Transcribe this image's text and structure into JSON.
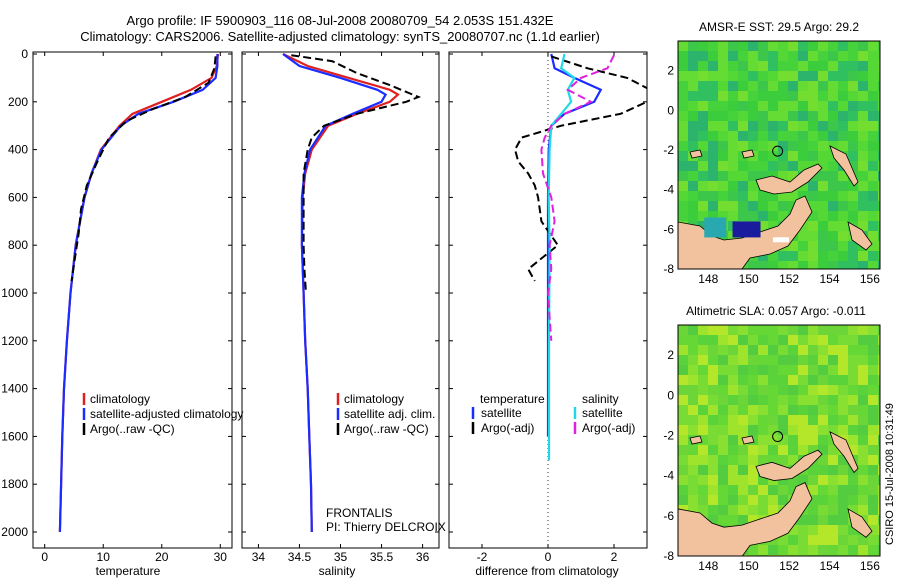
{
  "header": {
    "title_line1": "Argo profile: IF 5900903_116 08-Jul-2008 20080709_54 2.053S 151.432E",
    "title_line2": "Climatology: CARS2006. Satellite-adjusted climatology: synTS_20080707.nc (1.1d earlier)"
  },
  "side_label": "CSIRO 15-Jul-2008 10:31:49",
  "colors": {
    "climatology": "#e02020",
    "satellite": "#1a2cff",
    "argo": "#000000",
    "sat_salinity": "#22d8e8",
    "argo_salinity": "#e020e0"
  },
  "panels": {
    "temperature": {
      "xlabel": "temperature",
      "legend": [
        "climatology",
        "satellite-adjusted climatology",
        "Argo(..raw -QC)"
      ]
    },
    "salinity": {
      "xlabel": "salinity",
      "legend": [
        "climatology",
        "satellite adj. clim.",
        "Argo(..raw -QC)"
      ],
      "note_line1": "FRONTALIS",
      "note_line2": "PI: Thierry DELCROIX"
    },
    "difference": {
      "xlabel": "difference from climatology",
      "legend_heads": [
        "temperature",
        "salinity"
      ],
      "legend_temp": [
        "satellite",
        "Argo(-adj)"
      ],
      "legend_sal": [
        "satellite",
        "Argo(-adj)"
      ]
    }
  },
  "maps": {
    "sst_title": "AMSR-E SST: 29.5 Argo: 29.2",
    "sla_title": "Altimetric SLA: 0.057 Argo: -0.011"
  },
  "chart_data": [
    {
      "type": "line",
      "id": "temperature",
      "xlabel": "temperature",
      "ylim": [
        2000,
        0
      ],
      "xlim": [
        -2,
        32
      ],
      "xticks": [
        0,
        10,
        20,
        30
      ],
      "yticks": [
        0,
        200,
        400,
        600,
        800,
        1000,
        1200,
        1400,
        1600,
        1800,
        2000
      ],
      "series": [
        {
          "name": "climatology",
          "color": "#e02020",
          "dash": false,
          "depth": [
            0,
            50,
            100,
            150,
            200,
            250,
            300,
            400,
            500,
            600,
            800,
            1000,
            1200,
            1400,
            1600,
            1800,
            2000
          ],
          "values": [
            29.6,
            29.4,
            28.5,
            25,
            20,
            15,
            12.8,
            9.6,
            8,
            6.8,
            5.3,
            4.4,
            3.8,
            3.3,
            3,
            2.8,
            2.6
          ]
        },
        {
          "name": "satellite-adjusted climatology",
          "color": "#1a2cff",
          "dash": false,
          "depth": [
            0,
            50,
            100,
            150,
            200,
            250,
            300,
            400,
            500,
            600,
            800,
            1000,
            1200,
            1400,
            1600,
            1800,
            2000
          ],
          "values": [
            29.5,
            29.5,
            29.2,
            27,
            22,
            16,
            13,
            9.7,
            8,
            6.8,
            5.3,
            4.4,
            3.8,
            3.3,
            3,
            2.8,
            2.6
          ]
        },
        {
          "name": "Argo(..raw -QC)",
          "color": "#000000",
          "dash": true,
          "depth": [
            10,
            60,
            120,
            180,
            230,
            280,
            350,
            450,
            550,
            650,
            750,
            850,
            950
          ],
          "values": [
            29.2,
            29,
            28,
            24,
            18.5,
            14,
            11,
            9,
            7.2,
            6.2,
            5.8,
            5.2,
            4.6
          ]
        }
      ]
    },
    {
      "type": "line",
      "id": "salinity",
      "xlabel": "salinity",
      "ylim": [
        2000,
        0
      ],
      "xlim": [
        33.8,
        36.2
      ],
      "xticks": [
        34,
        34.5,
        35,
        35.5,
        36
      ],
      "series": [
        {
          "name": "climatology",
          "color": "#e02020",
          "dash": false,
          "depth": [
            0,
            50,
            100,
            150,
            170,
            200,
            250,
            300,
            400,
            500,
            600,
            800,
            1000,
            1200,
            1400,
            1600,
            1800,
            2000
          ],
          "values": [
            34.3,
            34.6,
            35.1,
            35.6,
            35.7,
            35.6,
            35.2,
            34.85,
            34.65,
            34.57,
            34.54,
            34.53,
            34.55,
            34.57,
            34.6,
            34.62,
            34.64,
            34.65
          ]
        },
        {
          "name": "satellite adj. clim.",
          "color": "#1a2cff",
          "dash": false,
          "depth": [
            0,
            50,
            100,
            150,
            170,
            200,
            250,
            300,
            400,
            500,
            600,
            800,
            1000,
            1200,
            1400,
            1600,
            1800,
            2000
          ],
          "values": [
            34.3,
            34.5,
            35.0,
            35.45,
            35.55,
            35.5,
            35.15,
            34.82,
            34.63,
            34.56,
            34.53,
            34.53,
            34.55,
            34.57,
            34.6,
            34.62,
            34.64,
            34.65
          ]
        },
        {
          "name": "Argo(..raw -QC)",
          "color": "#000000",
          "dash": true,
          "depth": [
            5,
            30,
            80,
            130,
            180,
            200,
            250,
            300,
            350,
            400,
            500,
            600,
            700,
            800,
            900,
            1000
          ],
          "values": [
            34.4,
            34.9,
            35.2,
            35.6,
            35.95,
            35.8,
            35.2,
            34.8,
            34.65,
            34.6,
            34.55,
            34.55,
            34.55,
            34.55,
            34.56,
            34.58
          ]
        }
      ]
    },
    {
      "type": "line",
      "id": "difference",
      "xlabel": "difference from climatology",
      "ylim": [
        2000,
        0
      ],
      "xlim": [
        -3,
        3
      ],
      "xticks": [
        -2,
        0,
        2
      ],
      "series": [
        {
          "name": "satellite (temperature)",
          "color": "#1a2cff",
          "dash": false,
          "depth": [
            0,
            60,
            100,
            150,
            200,
            250,
            300,
            400,
            600,
            800,
            1000,
            1200,
            1400,
            1600
          ],
          "values": [
            0.1,
            0.2,
            0.8,
            1.6,
            1.4,
            0.5,
            0.1,
            0.02,
            0,
            0,
            0,
            0,
            0,
            0
          ]
        },
        {
          "name": "Argo(-adj) (temperature)",
          "color": "#000000",
          "dash": true,
          "depth": [
            10,
            60,
            100,
            150,
            200,
            250,
            300,
            350,
            400,
            450,
            500,
            550,
            600,
            700,
            800,
            900,
            950
          ],
          "values": [
            0.1,
            1.2,
            2.4,
            3.1,
            3.0,
            2.2,
            0.4,
            -0.8,
            -1.0,
            -0.9,
            -0.6,
            -0.4,
            -0.3,
            -0.2,
            0.3,
            -0.6,
            -0.4
          ]
        },
        {
          "name": "satellite (salinity)",
          "color": "#22d8e8",
          "dash": false,
          "depth": [
            0,
            60,
            100,
            150,
            200,
            250,
            300,
            400,
            600,
            800,
            1000,
            1200,
            1400,
            1600,
            1700
          ],
          "values": [
            0.5,
            0.4,
            0.8,
            0.6,
            0.7,
            0.4,
            0.1,
            0.05,
            0.02,
            0.05,
            0.04,
            0.03,
            0.03,
            0.03,
            0.03
          ]
        },
        {
          "name": "Argo(-adj) (salinity)",
          "color": "#e020e0",
          "dash": true,
          "depth": [
            5,
            60,
            100,
            150,
            200,
            250,
            300,
            350,
            400,
            500,
            600,
            700,
            800,
            900,
            1000,
            1100,
            1200
          ],
          "values": [
            2.0,
            1.8,
            1.0,
            0.6,
            1.3,
            0.5,
            0.1,
            -0.1,
            -0.2,
            -0.15,
            0.1,
            0.2,
            0.05,
            0.1,
            0.0,
            0.05,
            0.1
          ]
        }
      ]
    },
    {
      "type": "heatmap",
      "id": "sst-map",
      "title": "AMSR-E SST: 29.5 Argo: 29.2",
      "xlim": [
        146.5,
        156.5
      ],
      "ylim": [
        -8,
        3.5
      ],
      "xticks": [
        148,
        150,
        152,
        154,
        156
      ],
      "yticks": [
        -8,
        -6,
        -4,
        -2,
        0,
        2
      ],
      "argo_position": {
        "lon": 151.432,
        "lat": -2.053
      }
    },
    {
      "type": "heatmap",
      "id": "sla-map",
      "title": "Altimetric SLA: 0.057 Argo: -0.011",
      "xlim": [
        146.5,
        156.5
      ],
      "ylim": [
        -8,
        3.5
      ],
      "xticks": [
        148,
        150,
        152,
        154,
        156
      ],
      "yticks": [
        -8,
        -6,
        -4,
        -2,
        0,
        2
      ],
      "argo_position": {
        "lon": 151.432,
        "lat": -2.053
      }
    }
  ]
}
